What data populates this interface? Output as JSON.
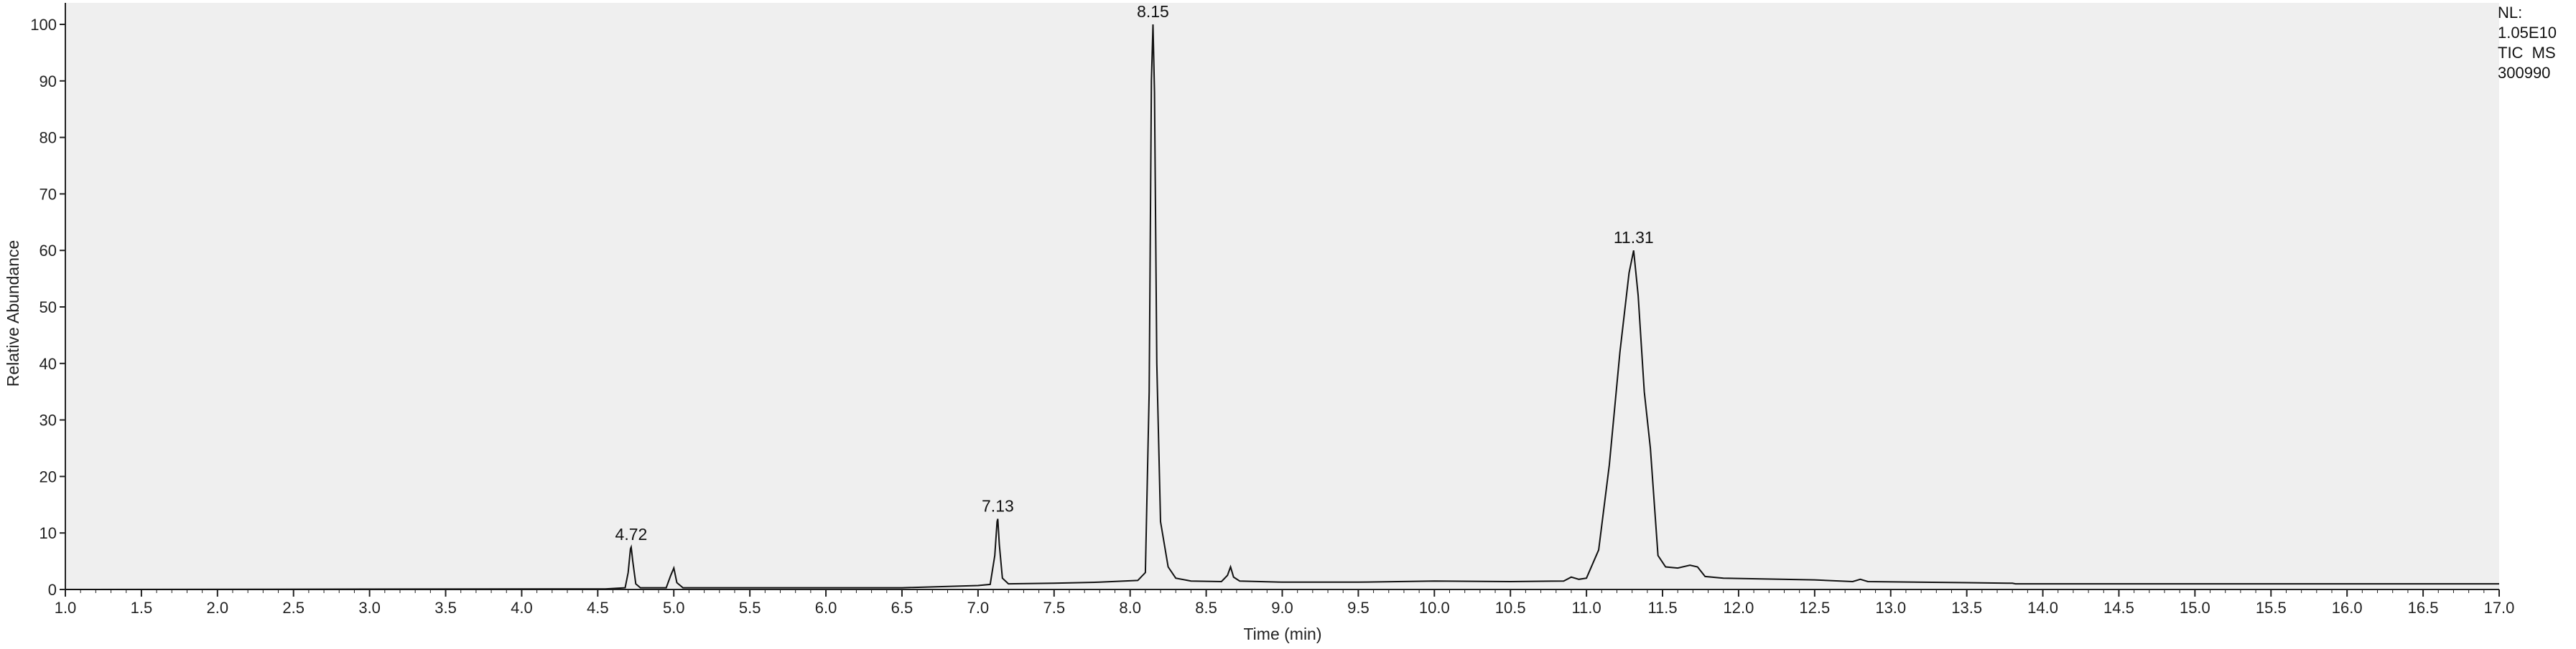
{
  "chart_data": {
    "type": "line",
    "title": "",
    "xlabel": "Time (min)",
    "ylabel": "Relative Abundance",
    "xlim": [
      1.0,
      17.0
    ],
    "ylim": [
      0,
      100
    ],
    "x_ticks": [
      "1.0",
      "1.5",
      "2.0",
      "2.5",
      "3.0",
      "3.5",
      "4.0",
      "4.5",
      "5.0",
      "5.5",
      "6.0",
      "6.5",
      "7.0",
      "7.5",
      "8.0",
      "8.5",
      "9.0",
      "9.5",
      "10.0",
      "10.5",
      "11.0",
      "11.5",
      "12.0",
      "12.5",
      "13.0",
      "13.5",
      "14.0",
      "14.5",
      "15.0",
      "15.5",
      "16.0",
      "16.5",
      "17.0"
    ],
    "y_ticks": [
      "0",
      "10",
      "20",
      "30",
      "40",
      "50",
      "60",
      "70",
      "80",
      "90",
      "100"
    ],
    "grid": false,
    "info": [
      "NL:",
      "1.05E10",
      "TIC  MS",
      "300990"
    ],
    "peak_labels": [
      {
        "x": 4.72,
        "y": 7.5,
        "label": "4.72"
      },
      {
        "x": 7.13,
        "y": 12.5,
        "label": "7.13"
      },
      {
        "x": 8.15,
        "y": 100,
        "label": "8.15"
      },
      {
        "x": 11.31,
        "y": 60,
        "label": "11.31"
      }
    ],
    "series": [
      {
        "points": [
          [
            1.0,
            0
          ],
          [
            4.55,
            0.1
          ],
          [
            4.68,
            0.3
          ],
          [
            4.7,
            3
          ],
          [
            4.715,
            7.2
          ],
          [
            4.72,
            7.5
          ],
          [
            4.73,
            5
          ],
          [
            4.75,
            1
          ],
          [
            4.78,
            0.3
          ],
          [
            4.95,
            0.3
          ],
          [
            4.98,
            2.5
          ],
          [
            5.0,
            3.8
          ],
          [
            5.02,
            1.2
          ],
          [
            5.06,
            0.3
          ],
          [
            6.0,
            0.3
          ],
          [
            6.5,
            0.3
          ],
          [
            7.0,
            0.7
          ],
          [
            7.08,
            0.9
          ],
          [
            7.11,
            6
          ],
          [
            7.125,
            12
          ],
          [
            7.13,
            12.5
          ],
          [
            7.14,
            8
          ],
          [
            7.16,
            2
          ],
          [
            7.2,
            1.0
          ],
          [
            7.5,
            1.1
          ],
          [
            7.8,
            1.3
          ],
          [
            8.05,
            1.6
          ],
          [
            8.1,
            3
          ],
          [
            8.125,
            35
          ],
          [
            8.14,
            90
          ],
          [
            8.15,
            100
          ],
          [
            8.16,
            88
          ],
          [
            8.175,
            40
          ],
          [
            8.2,
            12
          ],
          [
            8.25,
            4
          ],
          [
            8.3,
            2
          ],
          [
            8.4,
            1.5
          ],
          [
            8.6,
            1.4
          ],
          [
            8.64,
            2.5
          ],
          [
            8.66,
            4
          ],
          [
            8.68,
            2.2
          ],
          [
            8.72,
            1.5
          ],
          [
            9.0,
            1.3
          ],
          [
            9.5,
            1.3
          ],
          [
            10.0,
            1.5
          ],
          [
            10.5,
            1.4
          ],
          [
            10.85,
            1.5
          ],
          [
            10.9,
            2.2
          ],
          [
            10.95,
            1.8
          ],
          [
            11.0,
            2
          ],
          [
            11.08,
            7
          ],
          [
            11.15,
            22
          ],
          [
            11.22,
            42
          ],
          [
            11.28,
            56
          ],
          [
            11.31,
            60
          ],
          [
            11.34,
            52
          ],
          [
            11.38,
            35
          ],
          [
            11.42,
            25
          ],
          [
            11.47,
            6
          ],
          [
            11.52,
            4
          ],
          [
            11.6,
            3.8
          ],
          [
            11.68,
            4.3
          ],
          [
            11.73,
            4
          ],
          [
            11.78,
            2.3
          ],
          [
            11.9,
            2
          ],
          [
            12.5,
            1.7
          ],
          [
            12.75,
            1.4
          ],
          [
            12.8,
            1.8
          ],
          [
            12.85,
            1.4
          ],
          [
            13.5,
            1.2
          ],
          [
            13.8,
            1.1
          ],
          [
            13.82,
            1.0
          ],
          [
            14.5,
            1.0
          ],
          [
            15.5,
            1.0
          ],
          [
            16.5,
            1.0
          ],
          [
            17.0,
            1.0
          ]
        ]
      }
    ]
  }
}
